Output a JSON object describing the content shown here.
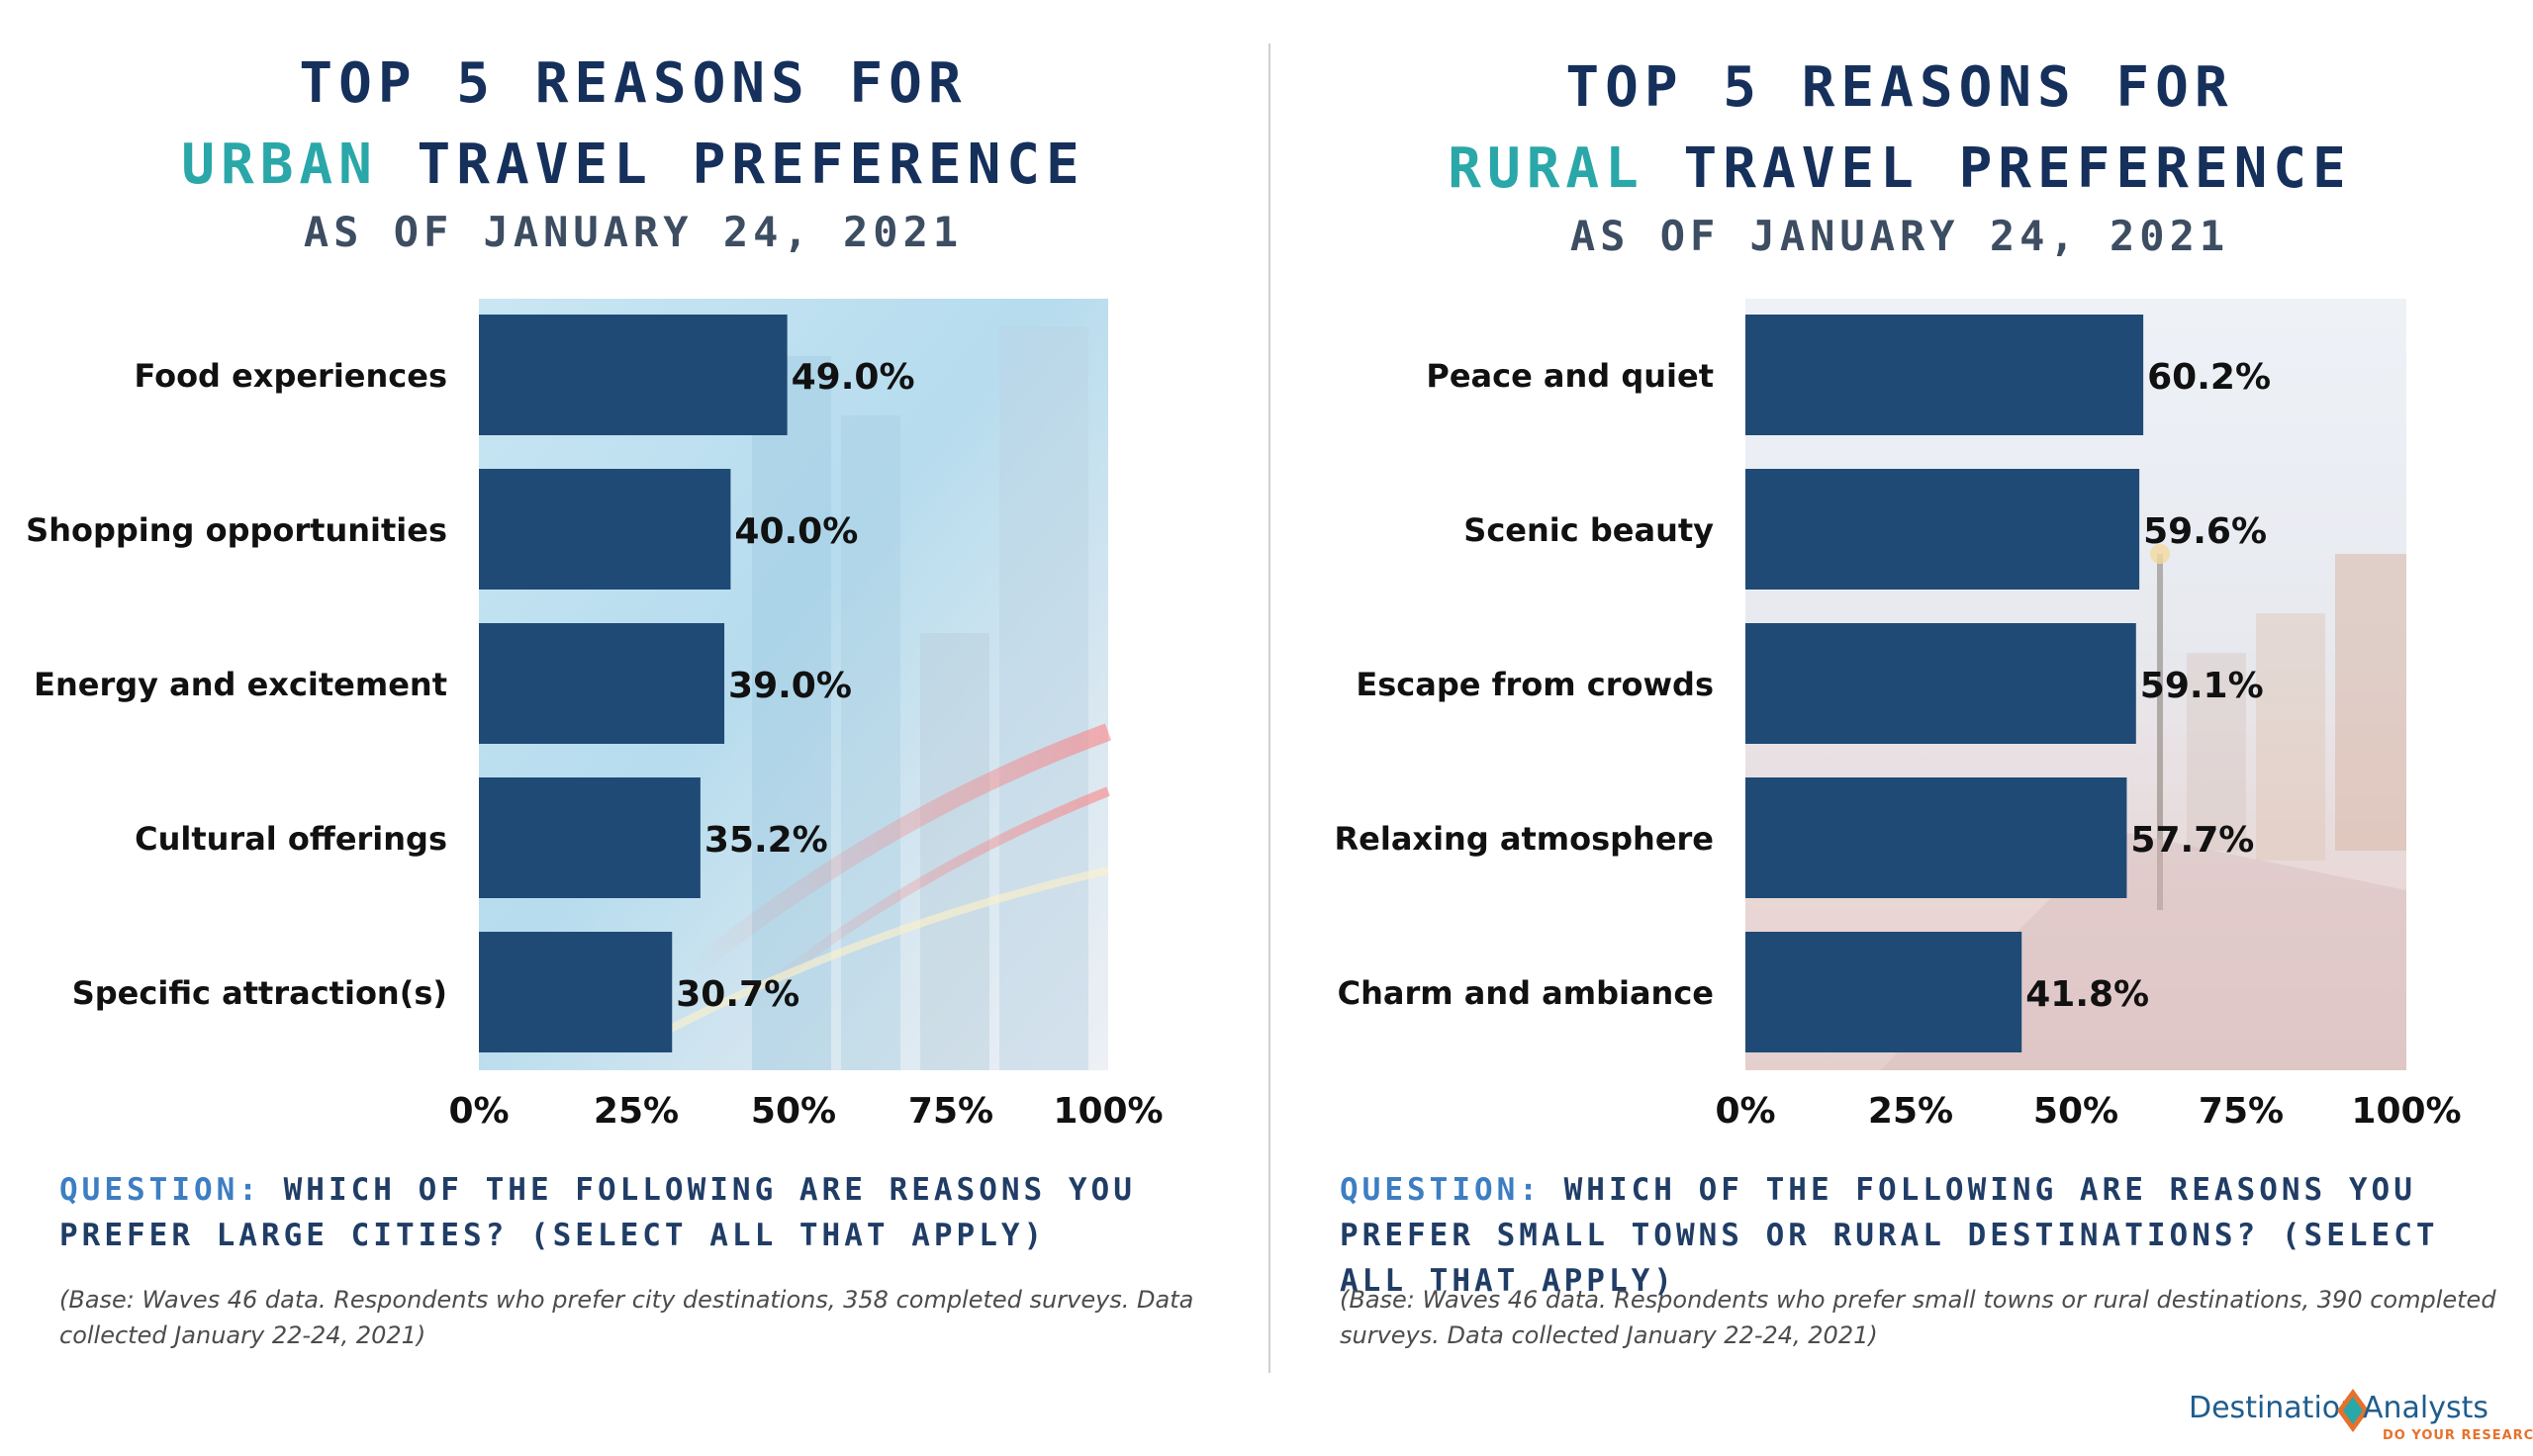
{
  "left": {
    "title_line1": "TOP 5 REASONS FOR",
    "title_accent": "URBAN",
    "title_rest": " TRAVEL PREFERENCE",
    "subtitle": "AS OF JANUARY 24, 2021",
    "question_label": "QUESTION:",
    "question_text": " WHICH OF THE FOLLOWING ARE REASONS YOU PREFER LARGE CITIES? (SELECT ALL THAT APPLY)",
    "note": "(Base: Waves 46 data. Respondents who prefer city destinations, 358 completed surveys. Data collected January 22-24, 2021)"
  },
  "right": {
    "title_line1": "TOP 5 REASONS FOR",
    "title_accent": "RURAL",
    "title_rest": " TRAVEL PREFERENCE",
    "subtitle": "AS OF JANUARY 24, 2021",
    "question_label": "QUESTION:",
    "question_text": " WHICH OF THE FOLLOWING ARE REASONS YOU PREFER SMALL TOWNS OR RURAL DESTINATIONS? (SELECT ALL THAT APPLY)",
    "note": "(Base: Waves 46 data. Respondents who prefer small towns or rural destinations, 390 completed surveys. Data collected January 22-24, 2021)"
  },
  "logo": {
    "left_word": "Destination",
    "right_word": "Analysts",
    "tagline": "DO YOUR RESEARCH"
  },
  "colors": {
    "bar": "#1f4a75",
    "title": "#16305c",
    "accent": "#2aa7a9",
    "question": "#203d66",
    "question_label": "#3d7ec3"
  },
  "chart_data": [
    {
      "type": "bar",
      "orientation": "horizontal",
      "title": "TOP 5 REASONS FOR URBAN TRAVEL PREFERENCE",
      "categories": [
        "Food experiences",
        "Shopping opportunities",
        "Energy and excitement",
        "Cultural offerings",
        "Specific attraction(s)"
      ],
      "values": [
        49.0,
        40.0,
        39.0,
        35.2,
        30.7
      ],
      "labels": [
        "49.0%",
        "40.0%",
        "39.0%",
        "35.2%",
        "30.7%"
      ],
      "xlim": [
        0,
        100
      ],
      "ticks": [
        "0%",
        "25%",
        "50%",
        "75%",
        "100%"
      ],
      "xlabel": "",
      "ylabel": "",
      "grid": false,
      "background": "city"
    },
    {
      "type": "bar",
      "orientation": "horizontal",
      "title": "TOP 5 REASONS FOR RURAL TRAVEL PREFERENCE",
      "categories": [
        "Peace and quiet",
        "Scenic beauty",
        "Escape from crowds",
        "Relaxing atmosphere",
        "Charm and ambiance"
      ],
      "values": [
        60.2,
        59.6,
        59.1,
        57.7,
        41.8
      ],
      "labels": [
        "60.2%",
        "59.6%",
        "59.1%",
        "57.7%",
        "41.8%"
      ],
      "xlim": [
        0,
        100
      ],
      "ticks": [
        "0%",
        "25%",
        "50%",
        "75%",
        "100%"
      ],
      "xlabel": "",
      "ylabel": "",
      "grid": false,
      "background": "town"
    }
  ]
}
